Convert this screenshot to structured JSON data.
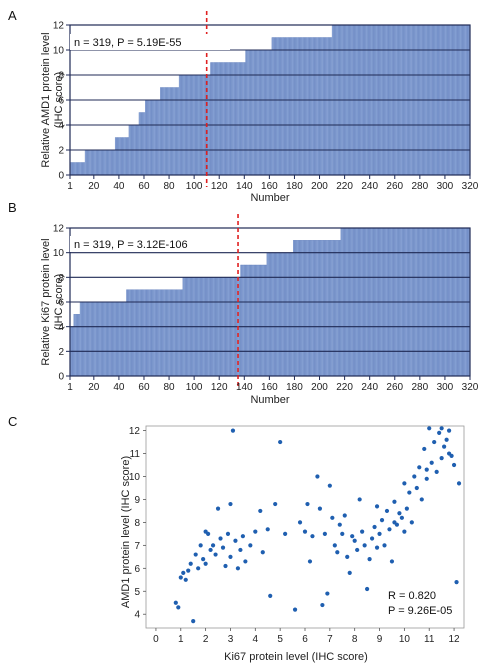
{
  "colors": {
    "bar": "#8ea8d8",
    "bar_stroke": "#5a78b8",
    "frame": "#1f2a55",
    "cutoff": "#e02020",
    "dot": "#1f5fb0"
  },
  "chart_data": [
    {
      "panel": "A",
      "type": "bar",
      "ylabel": "Relative AMD1 protein level",
      "ylabel2": "(IHC score)",
      "xlabel": "Number",
      "annotation": "n = 319, P = 5.19E-55",
      "xlim": [
        1,
        320
      ],
      "ylim": [
        0,
        12
      ],
      "xticks": [
        1,
        20,
        40,
        60,
        80,
        100,
        120,
        140,
        160,
        180,
        200,
        220,
        240,
        260,
        280,
        300,
        320
      ],
      "yticks": [
        0,
        2,
        4,
        6,
        8,
        10,
        12
      ],
      "cutoff_x": 110,
      "n": 319,
      "steps": [
        {
          "from": 1,
          "to": 12,
          "value": 1
        },
        {
          "from": 13,
          "to": 36,
          "value": 2
        },
        {
          "from": 37,
          "to": 47,
          "value": 3
        },
        {
          "from": 48,
          "to": 55,
          "value": 4
        },
        {
          "from": 56,
          "to": 60,
          "value": 5
        },
        {
          "from": 61,
          "to": 72,
          "value": 6
        },
        {
          "from": 73,
          "to": 87,
          "value": 7
        },
        {
          "from": 88,
          "to": 112,
          "value": 8
        },
        {
          "from": 113,
          "to": 140,
          "value": 9
        },
        {
          "from": 141,
          "to": 161,
          "value": 10
        },
        {
          "from": 162,
          "to": 209,
          "value": 11
        },
        {
          "from": 210,
          "to": 319,
          "value": 12
        }
      ]
    },
    {
      "panel": "B",
      "type": "bar",
      "ylabel": "Relative Ki67 protein level",
      "ylabel2": "(IHC score)",
      "xlabel": "Number",
      "annotation": "n = 319, P = 3.12E-106",
      "xlim": [
        1,
        320
      ],
      "ylim": [
        0,
        12
      ],
      "xticks": [
        1,
        20,
        40,
        60,
        80,
        100,
        120,
        140,
        160,
        180,
        200,
        220,
        240,
        260,
        280,
        300,
        320
      ],
      "yticks": [
        0,
        2,
        4,
        6,
        8,
        10,
        12
      ],
      "cutoff_x": 135,
      "n": 319,
      "steps": [
        {
          "from": 1,
          "to": 3,
          "value": 4
        },
        {
          "from": 4,
          "to": 8,
          "value": 5
        },
        {
          "from": 9,
          "to": 45,
          "value": 6
        },
        {
          "from": 46,
          "to": 90,
          "value": 7
        },
        {
          "from": 91,
          "to": 136,
          "value": 8
        },
        {
          "from": 137,
          "to": 157,
          "value": 9
        },
        {
          "from": 158,
          "to": 178,
          "value": 10
        },
        {
          "from": 179,
          "to": 216,
          "value": 11
        },
        {
          "from": 217,
          "to": 319,
          "value": 12
        }
      ]
    },
    {
      "panel": "C",
      "type": "scatter",
      "xlabel": "Ki67 protein level (IHC score)",
      "ylabel": "AMD1 protein level (IHC score)",
      "annotation_r": "R = 0.820",
      "annotation_p": "P = 9.26E-05",
      "xlim": [
        -0.4,
        12.4
      ],
      "ylim": [
        3.4,
        12.2
      ],
      "xticks": [
        0,
        1,
        2,
        3,
        4,
        5,
        6,
        7,
        8,
        9,
        10,
        11,
        12
      ],
      "yticks": [
        4,
        5,
        6,
        7,
        8,
        9,
        10,
        11,
        12
      ],
      "points": [
        [
          0.8,
          4.5
        ],
        [
          0.9,
          4.3
        ],
        [
          1.0,
          5.6
        ],
        [
          1.1,
          5.8
        ],
        [
          1.2,
          5.5
        ],
        [
          1.3,
          5.9
        ],
        [
          1.5,
          3.7
        ],
        [
          1.4,
          6.2
        ],
        [
          1.6,
          6.6
        ],
        [
          1.7,
          6.0
        ],
        [
          1.8,
          7.0
        ],
        [
          1.9,
          6.4
        ],
        [
          2.0,
          7.6
        ],
        [
          2.0,
          6.2
        ],
        [
          2.1,
          7.5
        ],
        [
          2.2,
          6.8
        ],
        [
          2.3,
          7.0
        ],
        [
          2.4,
          6.6
        ],
        [
          2.5,
          8.6
        ],
        [
          2.6,
          7.3
        ],
        [
          2.7,
          6.9
        ],
        [
          2.8,
          6.1
        ],
        [
          2.9,
          7.5
        ],
        [
          3.0,
          8.8
        ],
        [
          3.0,
          6.5
        ],
        [
          3.1,
          12.0
        ],
        [
          3.2,
          7.2
        ],
        [
          3.3,
          6.0
        ],
        [
          3.4,
          6.8
        ],
        [
          3.5,
          7.4
        ],
        [
          3.6,
          6.3
        ],
        [
          3.8,
          7.0
        ],
        [
          4.0,
          7.6
        ],
        [
          4.2,
          8.5
        ],
        [
          4.3,
          6.7
        ],
        [
          4.5,
          7.7
        ],
        [
          4.6,
          4.8
        ],
        [
          4.8,
          8.8
        ],
        [
          5.0,
          11.5
        ],
        [
          5.2,
          7.5
        ],
        [
          5.6,
          4.2
        ],
        [
          5.8,
          8.0
        ],
        [
          6.0,
          7.6
        ],
        [
          6.1,
          8.8
        ],
        [
          6.2,
          6.3
        ],
        [
          6.3,
          7.4
        ],
        [
          6.5,
          10.0
        ],
        [
          6.6,
          8.6
        ],
        [
          6.7,
          4.4
        ],
        [
          6.8,
          7.5
        ],
        [
          6.9,
          4.9
        ],
        [
          7.0,
          9.6
        ],
        [
          7.1,
          8.2
        ],
        [
          7.2,
          7.0
        ],
        [
          7.3,
          6.7
        ],
        [
          7.4,
          7.9
        ],
        [
          7.5,
          7.5
        ],
        [
          7.6,
          8.3
        ],
        [
          7.7,
          6.5
        ],
        [
          7.8,
          5.8
        ],
        [
          7.9,
          7.4
        ],
        [
          8.0,
          7.2
        ],
        [
          8.1,
          6.8
        ],
        [
          8.2,
          9.0
        ],
        [
          8.3,
          7.6
        ],
        [
          8.4,
          7.0
        ],
        [
          8.5,
          5.1
        ],
        [
          8.6,
          6.4
        ],
        [
          8.7,
          7.3
        ],
        [
          8.8,
          7.8
        ],
        [
          8.9,
          6.9
        ],
        [
          9.0,
          7.5
        ],
        [
          9.1,
          8.1
        ],
        [
          9.2,
          7.0
        ],
        [
          9.3,
          8.5
        ],
        [
          9.4,
          7.7
        ],
        [
          9.5,
          6.3
        ],
        [
          9.6,
          8.9
        ],
        [
          9.7,
          7.9
        ],
        [
          9.8,
          8.4
        ],
        [
          9.9,
          8.2
        ],
        [
          10.0,
          7.6
        ],
        [
          10.0,
          9.7
        ],
        [
          10.1,
          8.6
        ],
        [
          10.2,
          9.3
        ],
        [
          10.3,
          8.0
        ],
        [
          10.4,
          10.0
        ],
        [
          10.5,
          9.5
        ],
        [
          10.6,
          10.4
        ],
        [
          10.7,
          9.0
        ],
        [
          10.8,
          11.2
        ],
        [
          10.9,
          9.9
        ],
        [
          11.0,
          12.1
        ],
        [
          11.1,
          10.6
        ],
        [
          11.2,
          11.5
        ],
        [
          11.3,
          10.2
        ],
        [
          11.4,
          11.9
        ],
        [
          11.5,
          10.8
        ],
        [
          11.6,
          11.3
        ],
        [
          11.7,
          11.6
        ],
        [
          11.8,
          12.0
        ],
        [
          11.9,
          10.9
        ],
        [
          12.0,
          10.5
        ],
        [
          12.1,
          5.4
        ],
        [
          12.2,
          9.7
        ],
        [
          11.5,
          12.1
        ],
        [
          10.9,
          10.3
        ],
        [
          11.8,
          11.0
        ],
        [
          9.6,
          8.0
        ],
        [
          8.9,
          8.7
        ]
      ]
    }
  ],
  "panel_labels": {
    "a": "A",
    "b": "B",
    "c": "C"
  }
}
